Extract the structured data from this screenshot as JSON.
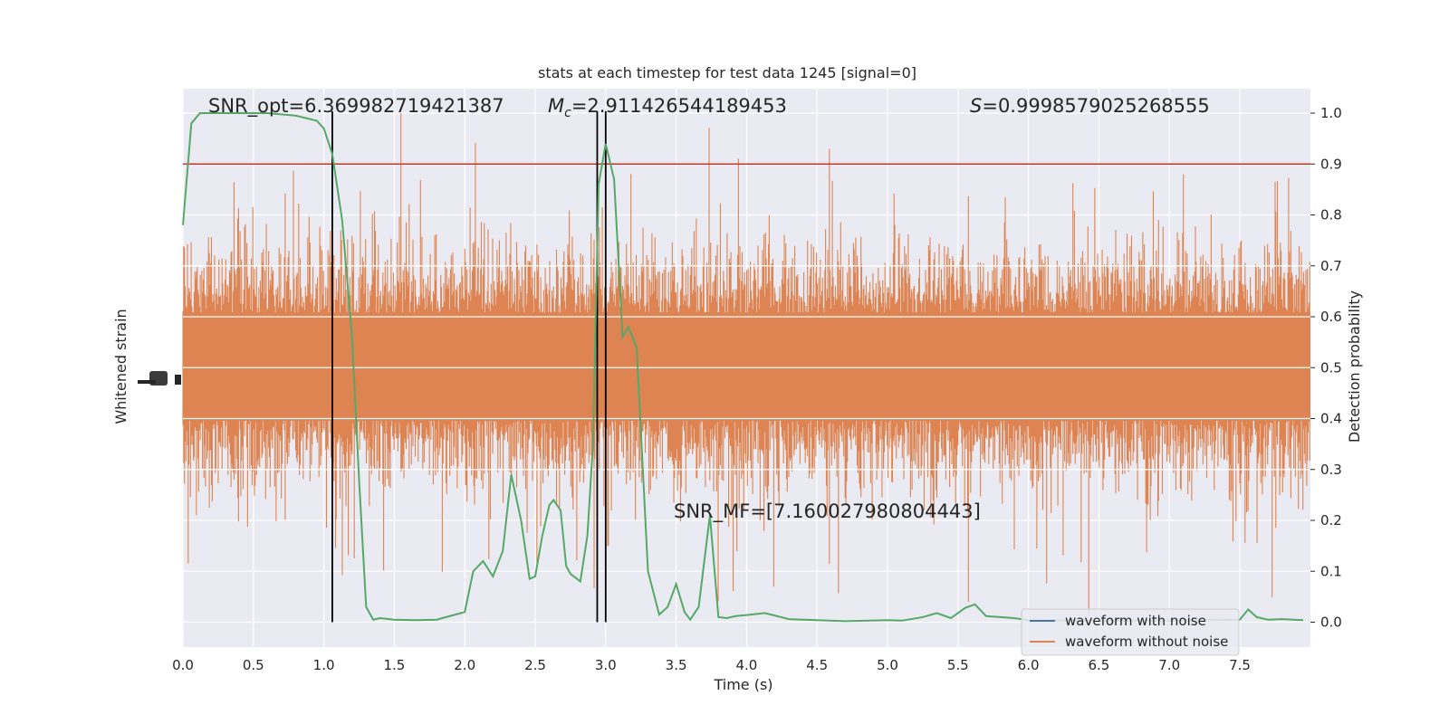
{
  "chart_data": {
    "type": "line",
    "title": "stats at each timestep for test data 1245 [signal=0]",
    "xlabel": "Time (s)",
    "ylabel_left": "Whitened strain",
    "ylabel_right": "Detection probability",
    "xlim": [
      0.0,
      8.0
    ],
    "ylim_right": [
      -0.05,
      1.05
    ],
    "x_ticks": [
      "0.0",
      "0.5",
      "1.0",
      "1.5",
      "2.0",
      "2.5",
      "3.0",
      "3.5",
      "4.0",
      "4.5",
      "5.0",
      "5.5",
      "6.0",
      "6.5",
      "7.0",
      "7.5"
    ],
    "y_ticks_right": [
      "0.0",
      "0.1",
      "0.2",
      "0.3",
      "0.4",
      "0.5",
      "0.6",
      "0.7",
      "0.8",
      "0.9",
      "1.0"
    ],
    "grid": true,
    "legend_position": "lower-right",
    "annotations": {
      "snr_opt": "SNR_opt=6.369982719421387",
      "mc_symbol": "M",
      "mc_sub": "c",
      "mc_value": "=2.911426544189453",
      "s_symbol": "S",
      "s_value": "=0.9998579025268555",
      "snr_mf": "SNR_MF=[7.160027980804443]"
    },
    "threshold": {
      "value": 0.9,
      "color": "#c0392b"
    },
    "vertical_lines_s": [
      1.06,
      2.94,
      3.0
    ],
    "series": [
      {
        "name": "waveform with noise",
        "color": "#4c72b0"
      },
      {
        "name": "waveform without noise",
        "color": "#dd8452"
      }
    ],
    "detection_probability": {
      "color": "#55a868",
      "x": [
        0.0,
        0.06,
        0.12,
        0.24,
        0.4,
        0.6,
        0.8,
        0.95,
        1.0,
        1.06,
        1.13,
        1.2,
        1.25,
        1.3,
        1.35,
        1.4,
        1.5,
        1.65,
        1.8,
        2.0,
        2.06,
        2.13,
        2.2,
        2.27,
        2.33,
        2.4,
        2.46,
        2.5,
        2.55,
        2.6,
        2.63,
        2.68,
        2.72,
        2.75,
        2.82,
        2.87,
        2.91,
        2.95,
        3.0,
        3.06,
        3.12,
        3.16,
        3.22,
        3.3,
        3.38,
        3.44,
        3.5,
        3.56,
        3.6,
        3.66,
        3.74,
        3.8,
        3.86,
        3.92,
        4.0,
        4.13,
        4.3,
        4.5,
        4.7,
        5.0,
        5.1,
        5.25,
        5.35,
        5.45,
        5.55,
        5.62,
        5.7,
        5.9,
        6.0,
        6.5,
        7.0,
        7.5,
        7.56,
        7.62,
        7.7,
        7.8,
        7.95
      ],
      "y": [
        0.78,
        0.98,
        1.0,
        1.0,
        1.0,
        1.0,
        0.995,
        0.985,
        0.97,
        0.92,
        0.79,
        0.56,
        0.28,
        0.03,
        0.005,
        0.008,
        0.005,
        0.004,
        0.005,
        0.02,
        0.1,
        0.12,
        0.09,
        0.14,
        0.29,
        0.2,
        0.085,
        0.09,
        0.17,
        0.23,
        0.24,
        0.22,
        0.11,
        0.095,
        0.08,
        0.17,
        0.35,
        0.86,
        0.94,
        0.87,
        0.56,
        0.58,
        0.54,
        0.1,
        0.015,
        0.03,
        0.075,
        0.02,
        0.005,
        0.03,
        0.21,
        0.01,
        0.008,
        0.012,
        0.014,
        0.018,
        0.006,
        0.004,
        0.002,
        0.004,
        0.003,
        0.01,
        0.018,
        0.008,
        0.028,
        0.035,
        0.012,
        0.008,
        0.004,
        0.003,
        0.003,
        0.005,
        0.025,
        0.01,
        0.005,
        0.006,
        0.004
      ]
    }
  }
}
